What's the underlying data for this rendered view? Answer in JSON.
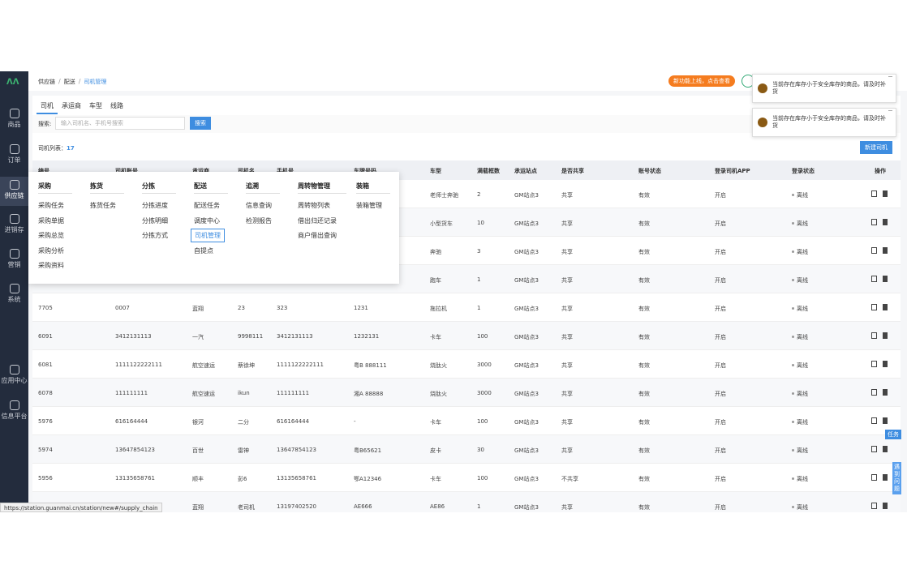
{
  "sidebar": {
    "items": [
      "商品",
      "订单",
      "供应链",
      "进销存",
      "营销",
      "系统",
      "应用中心",
      "信息平台"
    ]
  },
  "breadcrumb": [
    "供应链",
    "配送",
    "司机管理"
  ],
  "notice_button": "新功能上线，点击查看",
  "toasts": [
    "当前存在库存小于安全库存的商品，请及时补货",
    "当前存在库存小于安全库存的商品，请及时补货"
  ],
  "tabs": [
    "司机",
    "承运商",
    "车型",
    "线路"
  ],
  "search": {
    "label": "搜索:",
    "placeholder": "输入司机名、手机号搜索",
    "button": "搜索"
  },
  "list": {
    "label": "司机列表：",
    "count": 17,
    "new_button": "新建司机"
  },
  "table": {
    "headers": [
      "编号",
      "司机账号",
      "承运商",
      "司机名",
      "手机号",
      "车牌号码",
      "车型",
      "满载框数",
      "承运站点",
      "是否共享",
      "账号状态",
      "登录司机APP",
      "登录状态",
      "操作"
    ],
    "rows": [
      [
        null,
        null,
        null,
        null,
        null,
        null,
        "老师士奔驰",
        "2",
        "GM站点3",
        "共享",
        "有效",
        "开启",
        "离线"
      ],
      [
        null,
        null,
        null,
        null,
        null,
        null,
        "小型货车",
        "10",
        "GM站点3",
        "共享",
        "有效",
        "开启",
        "离线"
      ],
      [
        null,
        null,
        null,
        null,
        null,
        null,
        "奔驰",
        "3",
        "GM站点3",
        "共享",
        "有效",
        "开启",
        "离线"
      ],
      [
        null,
        null,
        null,
        null,
        null,
        null,
        "跑车",
        "1",
        "GM站点3",
        "共享",
        "有效",
        "开启",
        "离线"
      ],
      [
        "7705",
        "0007",
        "蓝翔",
        "23",
        "323",
        "1231",
        "拖拉机",
        "1",
        "GM站点3",
        "共享",
        "有效",
        "开启",
        "离线"
      ],
      [
        "6091",
        "3412131113",
        "一汽",
        "9998111",
        "3412131113",
        "1232131",
        "卡车",
        "100",
        "GM站点3",
        "共享",
        "有效",
        "开启",
        "离线"
      ],
      [
        "6081",
        "1111122222111",
        "航空速运",
        "蔡徐坤",
        "1111122222111",
        "粤B 888111",
        "烧肽火",
        "3000",
        "GM站点3",
        "共享",
        "有效",
        "开启",
        "离线"
      ],
      [
        "6078",
        "111111111",
        "航空速运",
        "ikun",
        "111111111",
        "湘A 88888",
        "烧肽火",
        "3000",
        "GM站点3",
        "共享",
        "有效",
        "开启",
        "离线"
      ],
      [
        "5976",
        "616164444",
        "银河",
        "二分",
        "616164444",
        "-",
        "卡车",
        "100",
        "GM站点3",
        "共享",
        "有效",
        "开启",
        "离线"
      ],
      [
        "5974",
        "13647854123",
        "百世",
        "雷神",
        "13647854123",
        "粤B65621",
        "皮卡",
        "30",
        "GM站点3",
        "共享",
        "有效",
        "开启",
        "离线"
      ],
      [
        "5956",
        "13135658761",
        "顺丰",
        "彭6",
        "13135658761",
        "鄂A12346",
        "卡车",
        "100",
        "GM站点3",
        "不共享",
        "有效",
        "开启",
        "离线"
      ],
      [
        null,
        null,
        "蓝翔",
        "老司机",
        "13197402520",
        "AE666",
        "AE86",
        "1",
        "GM站点3",
        "共享",
        "有效",
        "开启",
        "离线"
      ]
    ]
  },
  "menu": {
    "columns": [
      {
        "title": "采购",
        "items": [
          "采购任务",
          "采购单据",
          "采购总览",
          "采购分析",
          "采购资料"
        ]
      },
      {
        "title": "拣货",
        "items": [
          "拣货任务"
        ]
      },
      {
        "title": "分拣",
        "items": [
          "分拣进度",
          "分拣明细",
          "分拣方式"
        ]
      },
      {
        "title": "配送",
        "items": [
          "配送任务",
          "调度中心",
          "司机管理",
          "自提点"
        ]
      },
      {
        "title": "追溯",
        "items": [
          "信息查询",
          "检测报告"
        ]
      },
      {
        "title": "周转物管理",
        "items": [
          "周转物列表",
          "借出归还记录",
          "商户借出查询"
        ]
      },
      {
        "title": "装箱",
        "items": [
          "装箱管理"
        ]
      }
    ]
  },
  "side_tabs": [
    "任务",
    "遇到问题"
  ],
  "status_url": "https://station.guanmai.cn/station/new#/supply_chain"
}
